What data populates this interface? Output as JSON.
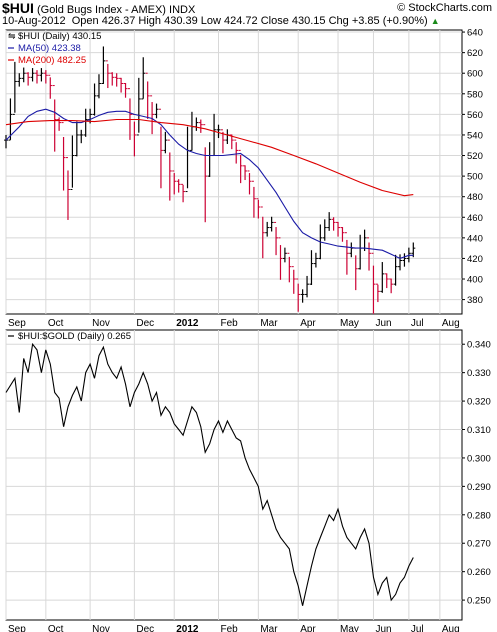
{
  "header": {
    "symbol": "$HUI",
    "name": "(Gold Bugs Index - AMEX)",
    "exchange": "INDX",
    "credit": "© StockCharts.com",
    "date": "10-Aug-2012",
    "ohlc_text": "Open 426.37  High 430.39  Low 424.72  Close 430.15  Chg +3.85 (+0.90%)",
    "ohlc_arrow": "▲"
  },
  "colors": {
    "price_up": "#000000",
    "price_down": "#cc0033",
    "ma50": "#1a1aa6",
    "ma200": "#dd0000",
    "grid": "#d8d8d8",
    "ratio": "#000000"
  },
  "chart_data": [
    {
      "type": "ohlc",
      "legend_position": "top-left",
      "legend": [
        "$HUI (Daily) 430.15",
        "MA(50) 423.38",
        "MA(200) 482.25"
      ],
      "y_range": [
        366,
        642
      ],
      "y_ticks": [
        640,
        620,
        600,
        580,
        560,
        540,
        520,
        500,
        480,
        460,
        440,
        420,
        400,
        380
      ],
      "grid": true,
      "series": [
        {
          "name": "$HUI (Daily)",
          "points": [
            [
              0,
              535
            ],
            [
              1,
              560
            ],
            [
              2,
              592
            ],
            [
              3,
              595
            ],
            [
              4,
              600
            ],
            [
              5,
              596
            ],
            [
              6,
              600
            ],
            [
              7,
              598
            ],
            [
              8,
              600
            ],
            [
              9,
              598
            ],
            [
              10,
              588
            ],
            [
              11,
              555
            ],
            [
              12,
              552
            ],
            [
              13,
              518
            ],
            [
              14,
              487
            ],
            [
              15,
              520
            ],
            [
              16,
              540
            ],
            [
              17,
              540
            ],
            [
              18,
              555
            ],
            [
              19,
              560
            ],
            [
              20,
              578
            ],
            [
              21,
              590
            ],
            [
              22,
              612
            ],
            [
              23,
              600
            ],
            [
              24,
              596
            ],
            [
              25,
              595
            ],
            [
              26,
              590
            ],
            [
              27,
              585
            ],
            [
              28,
              560
            ],
            [
              29,
              540
            ],
            [
              30,
              575
            ],
            [
              31,
              600
            ],
            [
              32,
              578
            ],
            [
              33,
              560
            ],
            [
              34,
              565
            ],
            [
              35,
              525
            ],
            [
              36,
              535
            ],
            [
              37,
              505
            ],
            [
              38,
              495
            ],
            [
              39,
              492
            ],
            [
              40,
              485
            ],
            [
              41,
              525
            ],
            [
              42,
              548
            ],
            [
              43,
              552
            ],
            [
              44,
              550
            ],
            [
              45,
              500
            ],
            [
              46,
              520
            ],
            [
              47,
              545
            ],
            [
              48,
              545
            ],
            [
              49,
              535
            ],
            [
              50,
              540
            ],
            [
              51,
              535
            ],
            [
              52,
              525
            ],
            [
              53,
              510
            ],
            [
              54,
              505
            ],
            [
              55,
              495
            ],
            [
              56,
              478
            ],
            [
              57,
              470
            ],
            [
              58,
              445
            ],
            [
              59,
              450
            ],
            [
              60,
              455
            ],
            [
              61,
              440
            ],
            [
              62,
              420
            ],
            [
              63,
              425
            ],
            [
              64,
              412
            ],
            [
              65,
              400
            ],
            [
              66,
              385
            ],
            [
              67,
              385
            ],
            [
              68,
              395
            ],
            [
              69,
              415
            ],
            [
              70,
              420
            ],
            [
              71,
              440
            ],
            [
              72,
              450
            ],
            [
              73,
              458
            ],
            [
              74,
              455
            ],
            [
              75,
              450
            ],
            [
              76,
              445
            ],
            [
              77,
              425
            ],
            [
              78,
              430
            ],
            [
              79,
              410
            ],
            [
              80,
              430
            ],
            [
              81,
              440
            ],
            [
              82,
              425
            ],
            [
              83,
              395
            ],
            [
              84,
              388
            ],
            [
              85,
              405
            ],
            [
              86,
              400
            ],
            [
              87,
              395
            ],
            [
              88,
              412
            ],
            [
              89,
              418
            ],
            [
              90,
              420
            ],
            [
              91,
              425
            ],
            [
              92,
              430
            ]
          ]
        },
        {
          "name": "MA(50)",
          "points": [
            [
              0,
              535
            ],
            [
              3,
              548
            ],
            [
              5,
              558
            ],
            [
              7,
              563
            ],
            [
              9,
              565
            ],
            [
              11,
              562
            ],
            [
              13,
              556
            ],
            [
              15,
              552
            ],
            [
              17,
              552
            ],
            [
              19,
              555
            ],
            [
              21,
              559
            ],
            [
              23,
              562
            ],
            [
              25,
              563
            ],
            [
              27,
              563
            ],
            [
              29,
              560
            ],
            [
              31,
              558
            ],
            [
              33,
              556
            ],
            [
              35,
              550
            ],
            [
              37,
              540
            ],
            [
              39,
              531
            ],
            [
              41,
              525
            ],
            [
              43,
              522
            ],
            [
              45,
              520
            ],
            [
              47,
              520
            ],
            [
              49,
              520
            ],
            [
              51,
              521
            ],
            [
              53,
              522
            ],
            [
              55,
              516
            ],
            [
              57,
              508
            ],
            [
              59,
              496
            ],
            [
              61,
              484
            ],
            [
              63,
              470
            ],
            [
              65,
              456
            ],
            [
              67,
              445
            ],
            [
              69,
              440
            ],
            [
              71,
              436
            ],
            [
              73,
              434
            ],
            [
              75,
              432
            ],
            [
              77,
              431
            ],
            [
              79,
              430
            ],
            [
              81,
              430
            ],
            [
              83,
              429
            ],
            [
              85,
              428
            ],
            [
              87,
              424
            ],
            [
              89,
              420
            ],
            [
              91,
              423
            ],
            [
              92,
              423
            ]
          ]
        },
        {
          "name": "MA(200)",
          "points": [
            [
              0,
              550
            ],
            [
              5,
              553
            ],
            [
              10,
              554
            ],
            [
              15,
              554
            ],
            [
              20,
              553
            ],
            [
              25,
              555
            ],
            [
              30,
              555
            ],
            [
              35,
              552
            ],
            [
              40,
              550
            ],
            [
              45,
              546
            ],
            [
              50,
              540
            ],
            [
              55,
              534
            ],
            [
              60,
              528
            ],
            [
              65,
              520
            ],
            [
              70,
              512
            ],
            [
              75,
              503
            ],
            [
              80,
              494
            ],
            [
              85,
              486
            ],
            [
              90,
              481
            ],
            [
              92,
              482
            ]
          ]
        }
      ]
    },
    {
      "type": "line",
      "legend_position": "top-left",
      "legend": [
        "$HUI:$GOLD (Daily) 0.265"
      ],
      "y_range": [
        0.243,
        0.345
      ],
      "y_ticks": [
        0.34,
        0.33,
        0.32,
        0.31,
        0.3,
        0.29,
        0.28,
        0.27,
        0.26,
        0.25
      ],
      "grid": true,
      "series": [
        {
          "name": "$HUI:$GOLD (Daily)",
          "points": [
            [
              0,
              0.323
            ],
            [
              2,
              0.328
            ],
            [
              3,
              0.316
            ],
            [
              4,
              0.335
            ],
            [
              5,
              0.33
            ],
            [
              6,
              0.34
            ],
            [
              7,
              0.338
            ],
            [
              8,
              0.33
            ],
            [
              9,
              0.338
            ],
            [
              10,
              0.333
            ],
            [
              11,
              0.323
            ],
            [
              12,
              0.321
            ],
            [
              13,
              0.311
            ],
            [
              14,
              0.318
            ],
            [
              15,
              0.322
            ],
            [
              16,
              0.325
            ],
            [
              17,
              0.32
            ],
            [
              18,
              0.33
            ],
            [
              19,
              0.333
            ],
            [
              20,
              0.328
            ],
            [
              21,
              0.336
            ],
            [
              22,
              0.339
            ],
            [
              23,
              0.333
            ],
            [
              24,
              0.33
            ],
            [
              25,
              0.328
            ],
            [
              26,
              0.332
            ],
            [
              27,
              0.326
            ],
            [
              28,
              0.318
            ],
            [
              29,
              0.323
            ],
            [
              30,
              0.326
            ],
            [
              31,
              0.33
            ],
            [
              32,
              0.326
            ],
            [
              33,
              0.32
            ],
            [
              34,
              0.323
            ],
            [
              35,
              0.315
            ],
            [
              36,
              0.318
            ],
            [
              37,
              0.316
            ],
            [
              38,
              0.312
            ],
            [
              39,
              0.31
            ],
            [
              40,
              0.308
            ],
            [
              41,
              0.313
            ],
            [
              42,
              0.318
            ],
            [
              43,
              0.316
            ],
            [
              44,
              0.311
            ],
            [
              45,
              0.302
            ],
            [
              46,
              0.305
            ],
            [
              47,
              0.31
            ],
            [
              48,
              0.313
            ],
            [
              49,
              0.309
            ],
            [
              50,
              0.313
            ],
            [
              51,
              0.31
            ],
            [
              52,
              0.307
            ],
            [
              53,
              0.306
            ],
            [
              54,
              0.3
            ],
            [
              55,
              0.296
            ],
            [
              56,
              0.293
            ],
            [
              57,
              0.29
            ],
            [
              58,
              0.282
            ],
            [
              59,
              0.285
            ],
            [
              60,
              0.28
            ],
            [
              61,
              0.275
            ],
            [
              62,
              0.272
            ],
            [
              63,
              0.27
            ],
            [
              64,
              0.268
            ],
            [
              65,
              0.26
            ],
            [
              66,
              0.255
            ],
            [
              67,
              0.248
            ],
            [
              68,
              0.255
            ],
            [
              69,
              0.262
            ],
            [
              70,
              0.268
            ],
            [
              71,
              0.272
            ],
            [
              72,
              0.276
            ],
            [
              73,
              0.28
            ],
            [
              74,
              0.278
            ],
            [
              75,
              0.282
            ],
            [
              76,
              0.276
            ],
            [
              77,
              0.272
            ],
            [
              78,
              0.27
            ],
            [
              79,
              0.268
            ],
            [
              80,
              0.272
            ],
            [
              81,
              0.275
            ],
            [
              82,
              0.27
            ],
            [
              83,
              0.258
            ],
            [
              84,
              0.252
            ],
            [
              85,
              0.256
            ],
            [
              86,
              0.258
            ],
            [
              87,
              0.25
            ],
            [
              88,
              0.252
            ],
            [
              89,
              0.256
            ],
            [
              90,
              0.258
            ],
            [
              91,
              0.262
            ],
            [
              92,
              0.265
            ]
          ]
        }
      ]
    }
  ],
  "x_axis": {
    "labels": [
      {
        "text": "Sep",
        "x": 0,
        "bold": false
      },
      {
        "text": "Oct",
        "x": 9,
        "bold": false
      },
      {
        "text": "Nov",
        "x": 19,
        "bold": false
      },
      {
        "text": "Dec",
        "x": 29,
        "bold": false
      },
      {
        "text": "2012",
        "x": 38,
        "bold": true
      },
      {
        "text": "Feb",
        "x": 48,
        "bold": false
      },
      {
        "text": "Mar",
        "x": 57,
        "bold": false
      },
      {
        "text": "Apr",
        "x": 66,
        "bold": false
      },
      {
        "text": "May",
        "x": 75,
        "bold": false
      },
      {
        "text": "Jun",
        "x": 83,
        "bold": false
      },
      {
        "text": "Jul",
        "x": 91,
        "bold": false
      },
      {
        "text": "Aug",
        "x": 98,
        "bold": false
      }
    ],
    "x_max": 103
  }
}
